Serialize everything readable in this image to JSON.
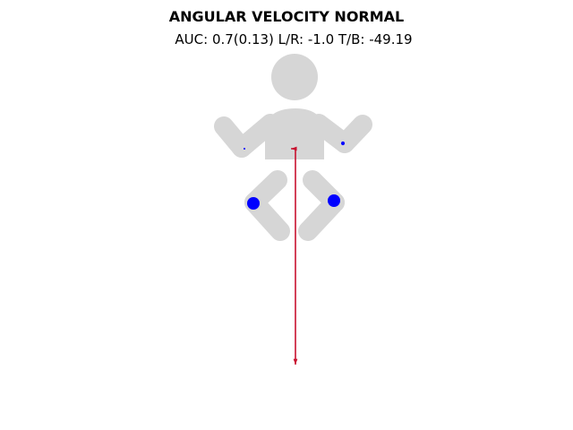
{
  "chart_data": {
    "type": "scatter",
    "title": "ANGULAR VELOCITY NORMAL",
    "subtitle": "AUC: 0.7(0.13) L/R: -1.0 T/B: -49.19",
    "body_color": "#d6d6d6",
    "marker_color": "#0000ff",
    "arrow_color": "#c8102e",
    "points": [
      {
        "joint": "right-wrist",
        "value": 0.15
      },
      {
        "joint": "left-wrist",
        "value": 0.3
      },
      {
        "joint": "right-knee",
        "value": 1.0
      },
      {
        "joint": "left-knee",
        "value": 1.0
      }
    ],
    "arrows": [
      {
        "direction": "left",
        "value": -1.0
      },
      {
        "direction": "down",
        "value": -49.19
      }
    ]
  }
}
